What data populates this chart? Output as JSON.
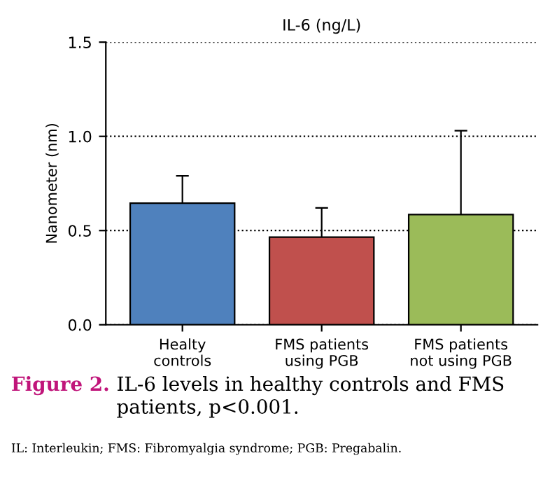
{
  "chart_data": {
    "type": "bar",
    "title": "IL-6 (ng/L)",
    "ylabel": "Nanometer (nm)",
    "categories": [
      "Healty\ncontrols",
      "FMS patients\nusing PGB",
      "FMS patients\nnot using PGB"
    ],
    "values": [
      0.645,
      0.465,
      0.585
    ],
    "colors": [
      "#4f81bd",
      "#c0504d",
      "#9bbb59"
    ],
    "errors": [
      [
        0.645,
        0.79
      ],
      [
        0.465,
        0.62
      ],
      [
        0.585,
        1.03
      ]
    ],
    "ylim": [
      0,
      1.5
    ],
    "yticks": [
      {
        "value": 0,
        "label": "0.0"
      },
      0.5,
      {
        "value": 1,
        "label": "1.0"
      },
      1.5
    ],
    "grid": "y",
    "annotations": [
      "Figure 2.",
      "IL-6 levels in healthy controls and FMS\npatients, p<0.001.",
      "IL: Interleukin; FMS: Fibromyalgia syndrome; PGB: Pregabalin."
    ]
  }
}
